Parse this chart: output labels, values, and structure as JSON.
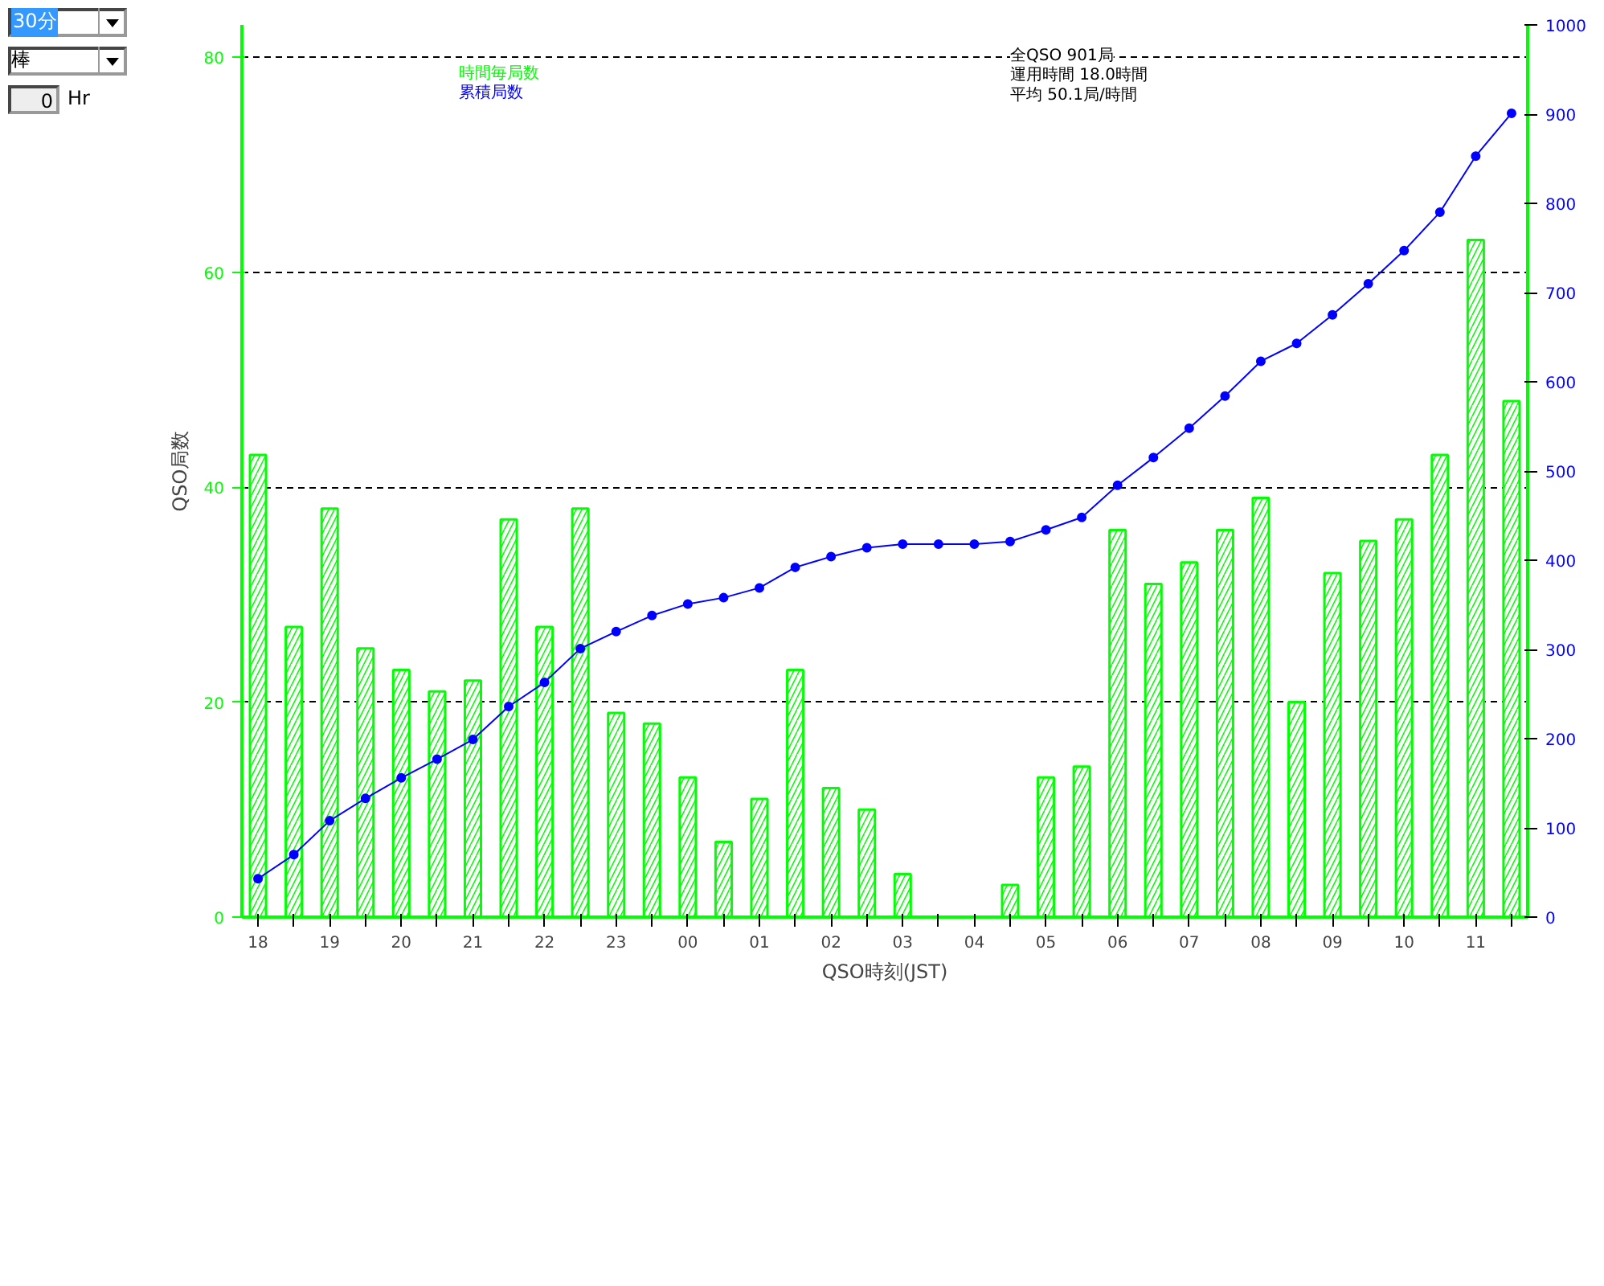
{
  "chart_data": {
    "type": "bar",
    "xlabel": "QSO時刻(JST)",
    "ylabel": "QSO局数",
    "categories": [
      "18",
      null,
      "19",
      null,
      "20",
      null,
      "21",
      null,
      "22",
      null,
      "23",
      null,
      "00",
      null,
      "01",
      null,
      "02",
      null,
      "03",
      null,
      "04",
      null,
      "05",
      null,
      "06",
      null,
      "07",
      null,
      "08",
      null,
      "09",
      null,
      "10",
      null,
      "11",
      null
    ],
    "series": [
      {
        "name": "時間毎局数",
        "color": "#00ff00",
        "values": [
          43,
          27,
          38,
          25,
          23,
          21,
          22,
          37,
          27,
          38,
          19,
          18,
          13,
          7,
          11,
          23,
          12,
          10,
          4,
          0,
          0,
          3,
          13,
          14,
          36,
          31,
          33,
          36,
          39,
          20,
          32,
          35,
          37,
          43,
          63,
          48
        ]
      },
      {
        "name": "累積局数",
        "type": "line",
        "axis": "y2",
        "color": "#0000ff",
        "marker": "circle",
        "values": [
          43,
          70,
          108,
          133,
          156,
          177,
          199,
          236,
          263,
          301,
          320,
          338,
          351,
          358,
          369,
          392,
          404,
          414,
          418,
          418,
          418,
          421,
          434,
          448,
          484,
          515,
          548,
          584,
          623,
          643,
          675,
          710,
          747,
          790,
          853,
          901
        ]
      }
    ],
    "ylim": [
      0,
      83
    ],
    "yticks": [
      0,
      20,
      40,
      60,
      80
    ],
    "y2lim": [
      0,
      1000
    ],
    "y2ticks": [
      0,
      100,
      200,
      300,
      400,
      500,
      600,
      700,
      800,
      900,
      1000
    ],
    "grid": "y",
    "legend": "top left",
    "annotations": [
      "全QSO 901局",
      "運用時間 18.0時間",
      "平均 50.1局/時間",
      "30分",
      "棒",
      "0",
      "Hr"
    ]
  }
}
